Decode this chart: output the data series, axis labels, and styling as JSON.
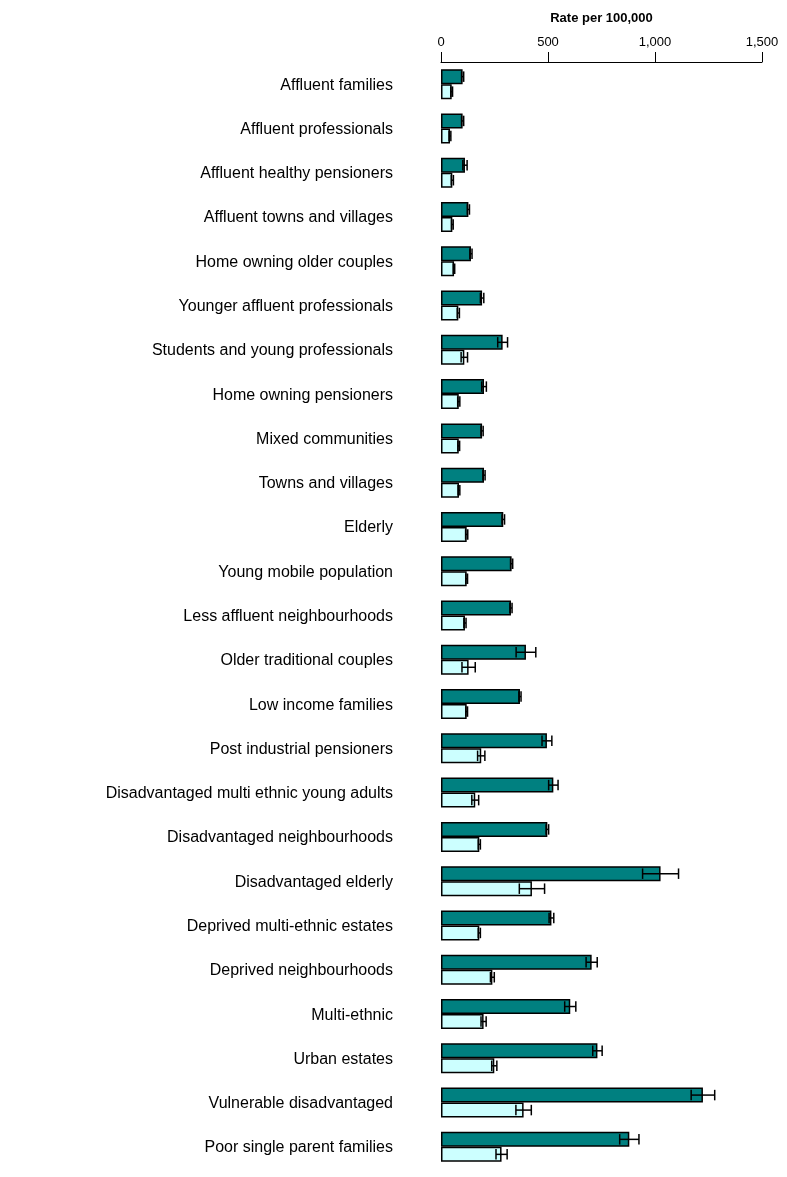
{
  "chart_data": {
    "type": "bar",
    "orientation": "horizontal",
    "xlabel": "Rate per 100,000",
    "categories": [
      "Affluent families",
      "Affluent professionals",
      "Affluent healthy pensioners",
      "Affluent towns and villages",
      "Home owning older couples",
      "Younger affluent professionals",
      "Students and young professionals",
      "Home owning pensioners",
      "Mixed communities",
      "Towns and villages",
      "Elderly",
      "Young mobile population",
      "Less affluent neighbourhoods",
      "Older traditional couples",
      "Low income families",
      "Post industrial pensioners",
      "Disadvantaged multi ethnic young adults",
      "Disadvantaged neighbourhoods",
      "Disadvantaged elderly",
      "Deprived multi-ethnic estates",
      "Deprived neighbourhoods",
      "Multi-ethnic",
      "Urban estates",
      "Vulnerable disadvantaged",
      "Poor single parent families"
    ],
    "series": [
      {
        "color": "#008080",
        "values": [
          101,
          101,
          112,
          128,
          140,
          192,
          288,
          201,
          192,
          201,
          291,
          330,
          327,
          397,
          369,
          495,
          525,
          497,
          1026,
          516,
          704,
          604,
          731,
          1224,
          880
        ],
        "errors": [
          5,
          5,
          10,
          5,
          5,
          8,
          23,
          11,
          5,
          5,
          6,
          5,
          5,
          46,
          5,
          23,
          22,
          6,
          84,
          11,
          26,
          26,
          22,
          55,
          45
        ]
      },
      {
        "color": "#ccffff",
        "values": [
          50,
          42,
          53,
          53,
          61,
          81,
          109,
          83,
          83,
          84,
          120,
          120,
          112,
          129,
          120,
          188,
          160,
          179,
          425,
          179,
          240,
          199,
          249,
          386,
          283
        ],
        "errors": [
          4,
          4,
          5,
          4,
          3,
          5,
          15,
          5,
          4,
          4,
          5,
          4,
          5,
          31,
          4,
          17,
          16,
          5,
          59,
          5,
          9,
          12,
          12,
          36,
          26
        ]
      }
    ],
    "xlim": [
      0,
      1500
    ],
    "xticks": [
      0,
      500,
      {
        "value": 1000,
        "label": "1,000"
      },
      {
        "value": 1500,
        "label": "1,500"
      }
    ],
    "grid": false
  }
}
